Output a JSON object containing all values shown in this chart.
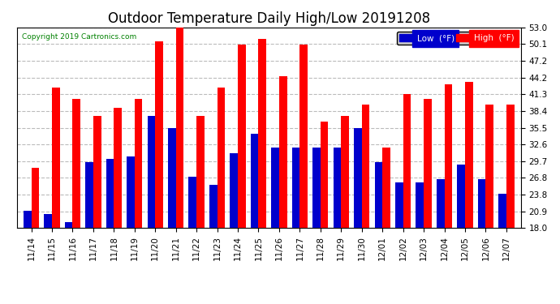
{
  "title": "Outdoor Temperature Daily High/Low 20191208",
  "copyright": "Copyright 2019 Cartronics.com",
  "legend_low": "Low  (°F)",
  "legend_high": "High  (°F)",
  "dates": [
    "11/14",
    "11/15",
    "11/16",
    "11/17",
    "11/18",
    "11/19",
    "11/20",
    "11/21",
    "11/22",
    "11/23",
    "11/24",
    "11/25",
    "11/26",
    "11/27",
    "11/28",
    "11/29",
    "11/30",
    "12/01",
    "12/02",
    "12/03",
    "12/04",
    "12/05",
    "12/06",
    "12/07"
  ],
  "highs": [
    28.5,
    42.5,
    40.5,
    37.5,
    39.0,
    40.5,
    50.5,
    53.0,
    37.5,
    42.5,
    50.0,
    51.0,
    44.5,
    50.0,
    36.5,
    37.5,
    39.5,
    32.0,
    41.3,
    40.5,
    43.0,
    43.5,
    39.5,
    39.5
  ],
  "lows": [
    21.0,
    20.5,
    19.0,
    29.5,
    30.0,
    30.5,
    37.5,
    35.5,
    27.0,
    25.5,
    31.0,
    34.5,
    32.0,
    32.0,
    32.0,
    32.0,
    35.5,
    29.5,
    26.0,
    26.0,
    26.5,
    29.0,
    26.5,
    24.0
  ],
  "ymin": 18.0,
  "ymax": 53.0,
  "yticks": [
    18.0,
    20.9,
    23.8,
    26.8,
    29.7,
    32.6,
    35.5,
    38.4,
    41.3,
    44.2,
    47.2,
    50.1,
    53.0
  ],
  "bar_width": 0.38,
  "high_color": "#ff0000",
  "low_color": "#0000cc",
  "bg_color": "#ffffff",
  "grid_color": "#bbbbbb",
  "title_fontsize": 12,
  "tick_fontsize": 7.5
}
